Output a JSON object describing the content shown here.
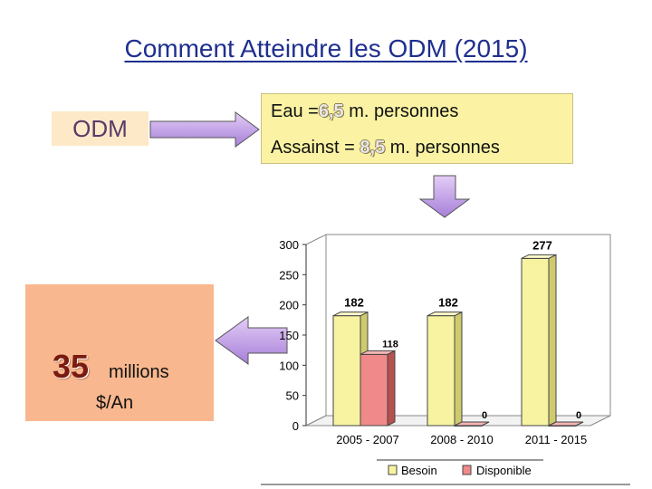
{
  "title": "Comment Atteindre les ODM (2015)",
  "odm_label": "ODM",
  "info": {
    "eau_prefix": "Eau =",
    "eau_value": "6,5",
    "eau_suffix": " m. personnes",
    "assainst_prefix": "Assainst = ",
    "assainst_value": "8,5",
    "assainst_suffix": " m. personnes"
  },
  "funding": {
    "amount": "35",
    "unit": "millions",
    "per": "$/An"
  },
  "colors": {
    "title": "#1f2f8f",
    "besoin": "#f7f3a0",
    "disponible": "#f08a8a",
    "info_bg": "#fbf3a3",
    "amount_bg": "#f8b78e",
    "arrow": "#c39be8"
  },
  "chart_data": {
    "type": "bar",
    "categories": [
      "2005 - 2007",
      "2008 - 2010",
      "2011 - 2015"
    ],
    "series": [
      {
        "name": "Besoin",
        "values": [
          182,
          182,
          277
        ],
        "labels": [
          "182",
          "182",
          "277"
        ]
      },
      {
        "name": "Disponible",
        "values": [
          118,
          0,
          0
        ],
        "labels": [
          "118",
          "0",
          "0"
        ]
      }
    ],
    "ylim": [
      0,
      300
    ],
    "yticks": [
      "0",
      "50",
      "100",
      "150",
      "200",
      "250",
      "300"
    ],
    "grid": false,
    "legend": "bottom",
    "style": "3d"
  }
}
